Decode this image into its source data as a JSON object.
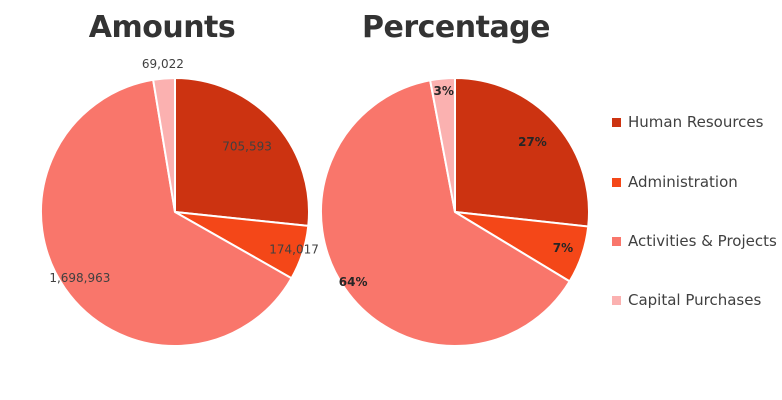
{
  "chart_data": [
    {
      "type": "pie",
      "title": "Amounts",
      "categories": [
        "Human Resources",
        "Administration",
        "Activities & Projects",
        "Capital Purchases"
      ],
      "values": [
        705593,
        174017,
        1698963,
        69022
      ],
      "data_labels": [
        "705,593",
        "174,017",
        "1,698,963",
        "69,022"
      ],
      "colors": [
        "#CC3311",
        "#F44718",
        "#F9766B",
        "#FBB1B0"
      ]
    },
    {
      "type": "pie",
      "title": "Percentage",
      "categories": [
        "Human Resources",
        "Administration",
        "Activities & Projects",
        "Capital Purchases"
      ],
      "values": [
        27,
        7,
        64,
        3
      ],
      "data_labels": [
        "27%",
        "7%",
        "64%",
        "3%"
      ],
      "colors": [
        "#CC3311",
        "#F44718",
        "#F9766B",
        "#FBB1B0"
      ]
    }
  ],
  "legend": {
    "position": "right",
    "items": [
      {
        "label": "Human Resources",
        "color": "#CC3311"
      },
      {
        "label": "Administration",
        "color": "#F44718"
      },
      {
        "label": "Activities & Projects",
        "color": "#F9766B"
      },
      {
        "label": "Capital Purchases",
        "color": "#FBB1B0"
      }
    ]
  }
}
